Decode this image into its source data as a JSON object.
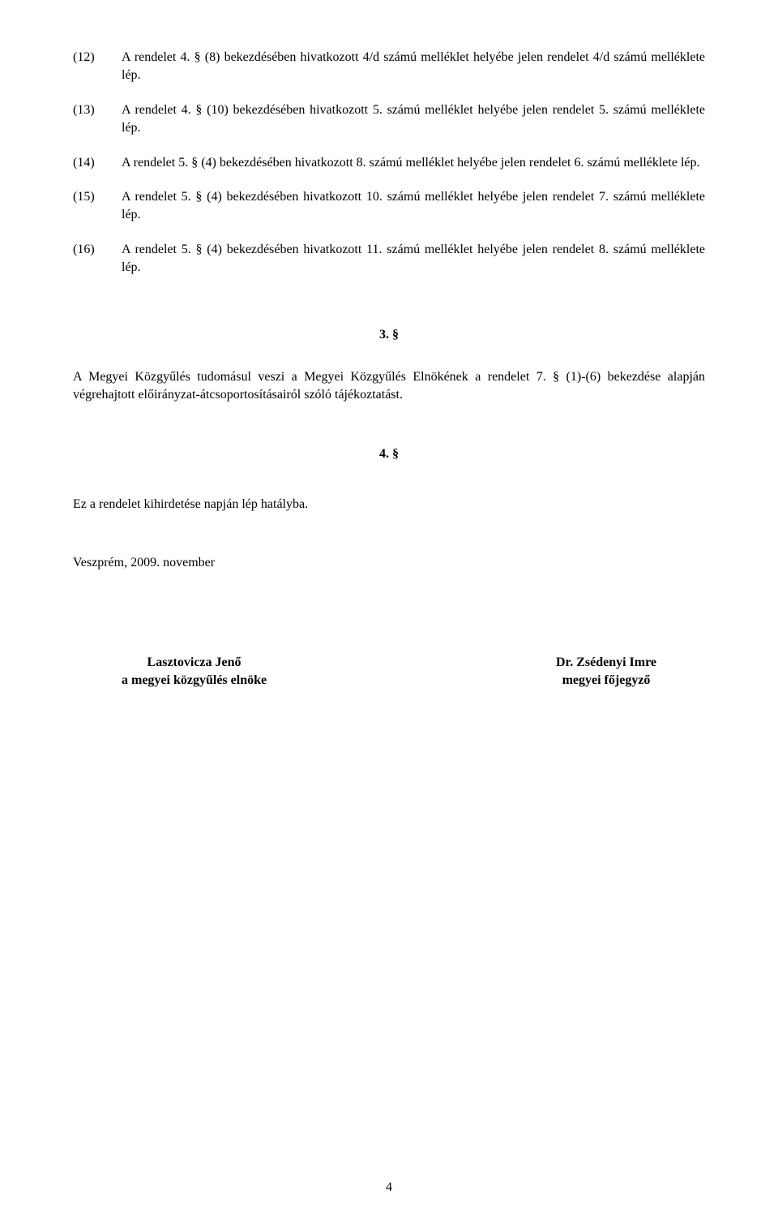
{
  "items": [
    {
      "num": "(12)",
      "text": "A rendelet 4. § (8) bekezdésében hivatkozott 4/d számú melléklet helyébe jelen rendelet 4/d számú melléklete lép."
    },
    {
      "num": "(13)",
      "text": "A rendelet 4. § (10) bekezdésében hivatkozott 5. számú melléklet helyébe jelen rendelet 5. számú melléklete lép."
    },
    {
      "num": "(14)",
      "text": "A rendelet 5. § (4) bekezdésében hivatkozott 8. számú melléklet helyébe jelen rendelet 6. számú melléklete lép."
    },
    {
      "num": "(15)",
      "text": "A rendelet 5. § (4) bekezdésében hivatkozott 10. számú melléklet helyébe jelen rendelet 7. számú melléklete lép."
    },
    {
      "num": "(16)",
      "text": "A rendelet 5. § (4) bekezdésében hivatkozott 11. számú melléklet helyébe jelen rendelet 8. számú melléklete lép."
    }
  ],
  "section3": {
    "heading": "3. §",
    "text": "A Megyei Közgyűlés tudomásul veszi a Megyei Közgyűlés Elnökének a rendelet 7. § (1)-(6) bekezdése alapján végrehajtott előirányzat-átcsoportosításairól szóló tájékoztatást."
  },
  "section4": {
    "heading": "4. §",
    "text": "Ez a rendelet kihirdetése napján lép hatályba."
  },
  "datePlace": "Veszprém, 2009. november",
  "signatures": {
    "left": {
      "name": "Lasztovicza Jenő",
      "title": "a megyei közgyűlés elnöke"
    },
    "right": {
      "name": "Dr. Zsédenyi Imre",
      "title": "megyei főjegyző"
    }
  },
  "pageNumber": "4",
  "style": {
    "fontFamily": "Times New Roman",
    "fontSize": 16,
    "textColor": "#000000",
    "background": "#ffffff",
    "pageWidth": 960,
    "pageHeight": 1515
  }
}
